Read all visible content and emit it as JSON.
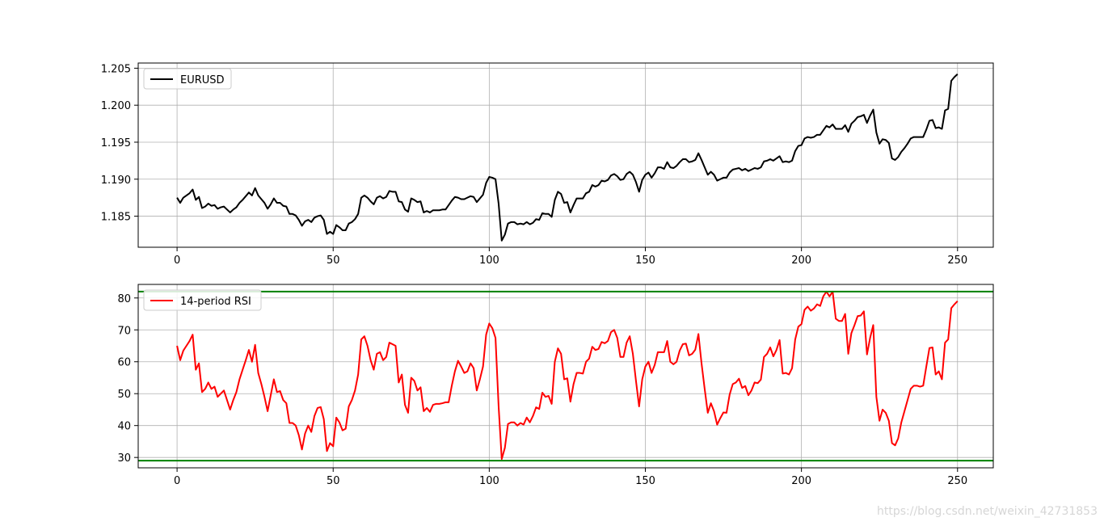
{
  "figure": {
    "background": "#ffffff",
    "watermark": "https://blog.csdn.net/weixin_42731853"
  },
  "chart_data": [
    {
      "type": "line",
      "grid": true,
      "xlim": [
        -12.45,
        261.45
      ],
      "ylim": [
        1.1808,
        1.2057
      ],
      "xticks": [
        0,
        50,
        100,
        150,
        200,
        250
      ],
      "xtick_labels": [
        "0",
        "50",
        "100",
        "150",
        "200",
        "250"
      ],
      "yticks": [
        1.185,
        1.19,
        1.195,
        1.2,
        1.205
      ],
      "ytick_labels": [
        "1.185",
        "1.190",
        "1.195",
        "1.200",
        "1.205"
      ],
      "legend_position": "upper left",
      "series": [
        {
          "name": "EURUSD",
          "color": "#000000",
          "values": [
            1.1875,
            1.1868,
            1.1875,
            1.1878,
            1.1881,
            1.1886,
            1.1872,
            1.1876,
            1.1861,
            1.1863,
            1.1867,
            1.1864,
            1.1865,
            1.186,
            1.1862,
            1.1863,
            1.1859,
            1.1855,
            1.1859,
            1.1862,
            1.1868,
            1.1872,
            1.1877,
            1.1882,
            1.1878,
            1.1888,
            1.1878,
            1.1873,
            1.1868,
            1.186,
            1.1866,
            1.1874,
            1.1868,
            1.1868,
            1.1864,
            1.1863,
            1.1853,
            1.1853,
            1.1851,
            1.1845,
            1.1837,
            1.1843,
            1.1845,
            1.1842,
            1.1848,
            1.185,
            1.1851,
            1.1845,
            1.1826,
            1.1829,
            1.1826,
            1.1838,
            1.1835,
            1.1831,
            1.1831,
            1.184,
            1.1842,
            1.1846,
            1.1853,
            1.1875,
            1.1878,
            1.1875,
            1.187,
            1.1866,
            1.1875,
            1.1877,
            1.1874,
            1.1876,
            1.1884,
            1.1883,
            1.1883,
            1.187,
            1.1869,
            1.1859,
            1.1856,
            1.1874,
            1.1872,
            1.1869,
            1.187,
            1.1855,
            1.1857,
            1.1855,
            1.1858,
            1.1858,
            1.1858,
            1.1859,
            1.1859,
            1.1865,
            1.1871,
            1.1876,
            1.1875,
            1.1873,
            1.1873,
            1.1875,
            1.1877,
            1.1876,
            1.1869,
            1.1874,
            1.1879,
            1.1895,
            1.1903,
            1.1902,
            1.19,
            1.1867,
            1.1817,
            1.1825,
            1.184,
            1.1842,
            1.1842,
            1.1839,
            1.184,
            1.1839,
            1.1842,
            1.1839,
            1.1841,
            1.1846,
            1.1845,
            1.1854,
            1.1853,
            1.1853,
            1.1849,
            1.1872,
            1.1883,
            1.188,
            1.1868,
            1.1869,
            1.1855,
            1.1865,
            1.1874,
            1.1874,
            1.1874,
            1.1881,
            1.1883,
            1.1892,
            1.189,
            1.1892,
            1.1898,
            1.1897,
            1.1899,
            1.1905,
            1.1907,
            1.1904,
            1.1899,
            1.19,
            1.1907,
            1.191,
            1.1906,
            1.1896,
            1.1883,
            1.1899,
            1.1906,
            1.1909,
            1.1902,
            1.1908,
            1.1916,
            1.1916,
            1.1914,
            1.1923,
            1.1916,
            1.1915,
            1.1918,
            1.1923,
            1.1927,
            1.1927,
            1.1923,
            1.1924,
            1.1926,
            1.1935,
            1.1926,
            1.1916,
            1.1906,
            1.191,
            1.1906,
            1.1898,
            1.19,
            1.1902,
            1.1902,
            1.1909,
            1.1913,
            1.1914,
            1.1915,
            1.1912,
            1.1914,
            1.1911,
            1.1913,
            1.1915,
            1.1914,
            1.1916,
            1.1924,
            1.1925,
            1.1927,
            1.1925,
            1.1928,
            1.1931,
            1.1923,
            1.1924,
            1.1923,
            1.1925,
            1.1938,
            1.1945,
            1.1946,
            1.1955,
            1.1957,
            1.1956,
            1.1957,
            1.196,
            1.196,
            1.1966,
            1.1972,
            1.197,
            1.1974,
            1.1968,
            1.1968,
            1.1968,
            1.1973,
            1.1964,
            1.1975,
            1.1979,
            1.1984,
            1.1985,
            1.1987,
            1.1976,
            1.1986,
            1.1994,
            1.1963,
            1.1948,
            1.1954,
            1.1953,
            1.1949,
            1.1928,
            1.1926,
            1.193,
            1.1937,
            1.1942,
            1.1948,
            1.1955,
            1.1957,
            1.1957,
            1.1957,
            1.1957,
            1.1967,
            1.1979,
            1.198,
            1.1969,
            1.197,
            1.1968,
            1.1993,
            1.1995,
            1.2033,
            1.2038,
            1.2042
          ]
        }
      ],
      "hlines": []
    },
    {
      "type": "line",
      "grid": true,
      "xlim": [
        -12.45,
        261.45
      ],
      "ylim": [
        26.75,
        84.25
      ],
      "xticks": [
        0,
        50,
        100,
        150,
        200,
        250
      ],
      "xtick_labels": [
        "0",
        "50",
        "100",
        "150",
        "200",
        "250"
      ],
      "yticks": [
        30,
        40,
        50,
        60,
        70,
        80
      ],
      "ytick_labels": [
        "30",
        "40",
        "50",
        "60",
        "70",
        "80"
      ],
      "legend_position": "upper left",
      "series": [
        {
          "name": "14-period RSI",
          "color": "#ff0000",
          "values": [
            65,
            60.5,
            63.5,
            65,
            66.5,
            68.5,
            57.5,
            59.5,
            50.5,
            51.5,
            53.5,
            51.5,
            52.2,
            49,
            50,
            51,
            48,
            45,
            48,
            50.5,
            54.5,
            57.5,
            60.5,
            63.7,
            60,
            65.3,
            56.5,
            53,
            49,
            44.5,
            49.5,
            54.5,
            50.5,
            50.8,
            48,
            47,
            40.8,
            40.8,
            40,
            37,
            32.5,
            37.5,
            40,
            38,
            43,
            45.5,
            45.8,
            42,
            32,
            34.5,
            33.5,
            42.5,
            41,
            38.5,
            39,
            46,
            48,
            51,
            56,
            67,
            68,
            65,
            60.5,
            57.5,
            62.5,
            63,
            60.5,
            61.5,
            66,
            65.5,
            65,
            53.5,
            56,
            46.5,
            44,
            55,
            54,
            51,
            52,
            44.5,
            45.5,
            44.3,
            46.5,
            46.8,
            46.8,
            47,
            47.3,
            47.3,
            52.5,
            57,
            60.3,
            58.5,
            56.5,
            57,
            59.5,
            58,
            51,
            54.5,
            58.5,
            68.5,
            72,
            70.5,
            67.5,
            46,
            29.5,
            33,
            40.5,
            41,
            41,
            40,
            40.8,
            40.3,
            42.5,
            41,
            43,
            45.7,
            45.2,
            50.3,
            49,
            49.3,
            46.8,
            60,
            64.2,
            62.5,
            54.5,
            54.8,
            47.5,
            53,
            56.5,
            56.5,
            56.3,
            60,
            61,
            64.7,
            63.7,
            64,
            66.2,
            65.8,
            66.5,
            69.3,
            70,
            67.5,
            61.5,
            61.5,
            66,
            68,
            62.5,
            54,
            46,
            54.5,
            58.5,
            60,
            56.5,
            59,
            63,
            63,
            63,
            66.5,
            60,
            59.2,
            60,
            63.5,
            65.5,
            65.7,
            62,
            62.5,
            63.8,
            68.7,
            59.5,
            51.5,
            44,
            47,
            44.5,
            40.3,
            42.3,
            44.1,
            44,
            49.7,
            53,
            53.5,
            54.7,
            51.8,
            52.4,
            49.5,
            51,
            53.5,
            53.3,
            54.4,
            61.5,
            62.5,
            64.5,
            61.7,
            63.7,
            66.8,
            56.3,
            56.5,
            56,
            58,
            67,
            71,
            71.8,
            76.3,
            77.3,
            76,
            76.7,
            78,
            77.5,
            80.5,
            82,
            80.5,
            82,
            73.5,
            72.8,
            72.8,
            75,
            62.5,
            69,
            71.5,
            74.3,
            74.5,
            75.8,
            62.3,
            67.5,
            71.5,
            49,
            41.5,
            45,
            44,
            41.5,
            34.5,
            33.8,
            36,
            41,
            44.5,
            48,
            51.5,
            52.5,
            52.5,
            52.2,
            52.5,
            58.5,
            64.3,
            64.5,
            56,
            57,
            54.5,
            66,
            67,
            76.8,
            78,
            79
          ]
        }
      ],
      "hlines": [
        {
          "value": 82,
          "color": "#008000"
        },
        {
          "value": 29,
          "color": "#008000"
        }
      ]
    }
  ]
}
